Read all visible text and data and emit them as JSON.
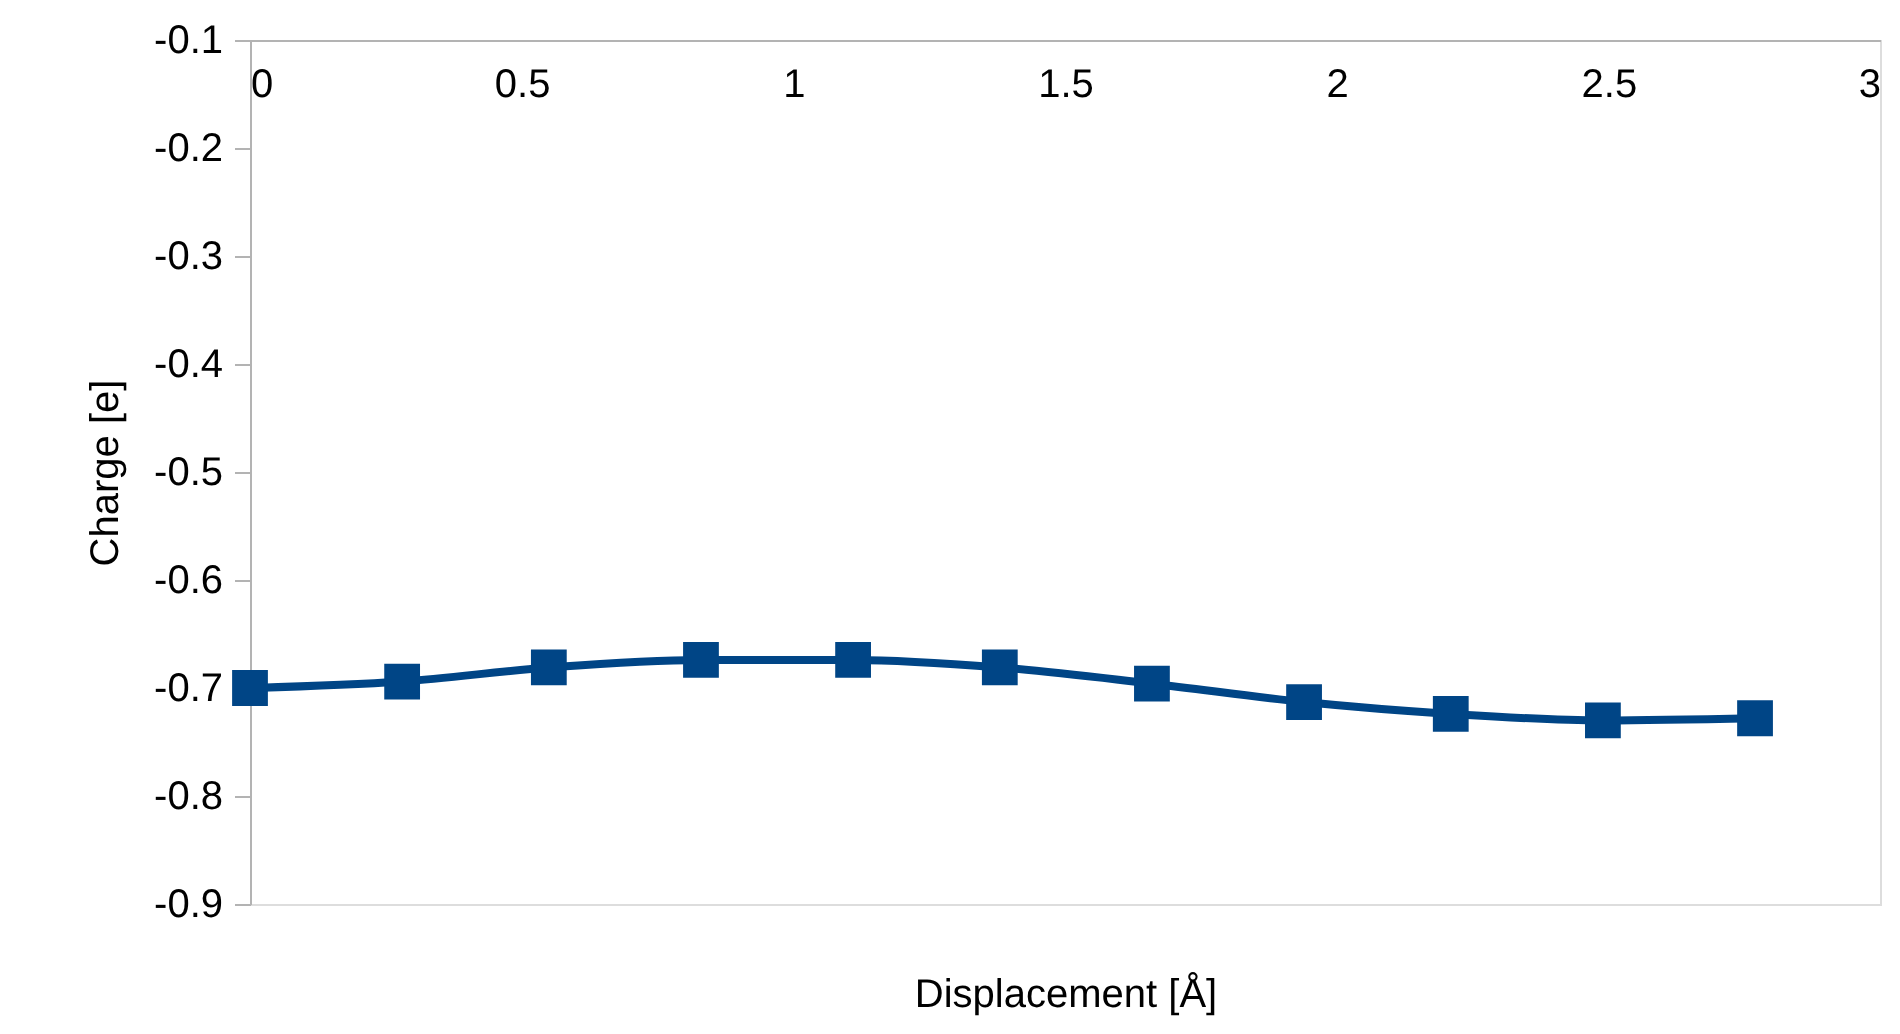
{
  "chart_data": {
    "type": "line",
    "xlabel": "Displacement [Å]",
    "ylabel": "Charge [e]",
    "xlim": [
      0,
      3
    ],
    "xticks": [
      0,
      0.5,
      1,
      1.5,
      2,
      2.5,
      3
    ],
    "ylim": [
      -0.9,
      -0.1
    ],
    "yticks": [
      -0.9,
      -0.8,
      -0.7,
      -0.6,
      -0.5,
      -0.4,
      -0.3,
      -0.2,
      -0.1
    ],
    "grid": false,
    "marker": "square",
    "line_style": "solid",
    "series": [
      {
        "color": "#004586",
        "x": [
          0,
          0.28,
          0.55,
          0.83,
          1.11,
          1.38,
          1.66,
          1.94,
          2.21,
          2.49,
          2.77
        ],
        "values": [
          -0.7,
          -0.694,
          -0.681,
          -0.674,
          -0.674,
          -0.681,
          -0.696,
          -0.713,
          -0.724,
          -0.73,
          -0.728
        ]
      }
    ]
  }
}
